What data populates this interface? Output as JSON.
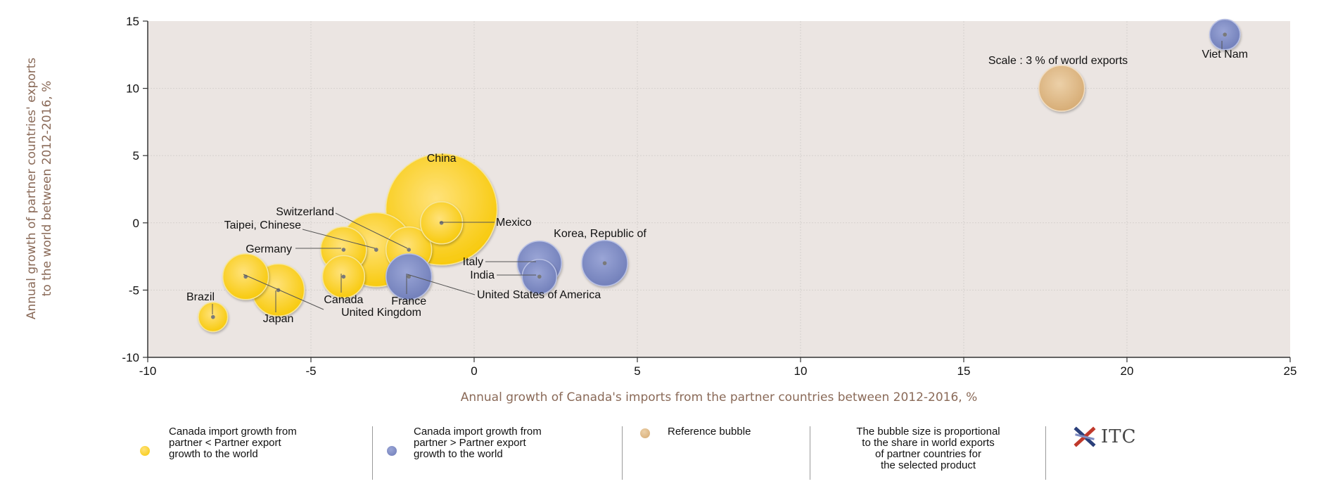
{
  "colors": {
    "plot_bg": "#ebe5e2",
    "yellow": "#fcd11f",
    "blue": "#7f8cc2",
    "reference": "#dcb685",
    "axis_title": "#8a6a58",
    "grid": "#d6d1ce"
  },
  "chart_data": {
    "type": "scatter",
    "title": "",
    "xlabel": "Annual growth of Canada's imports from the partner countries between 2012-2016, %",
    "ylabel_line1": "Annual growth of partner countries' exports",
    "ylabel_line2": "to the world between 2012-2016, %",
    "xlim": [
      -10,
      25
    ],
    "ylim": [
      -10,
      15
    ],
    "xticks": [
      -10,
      -5,
      0,
      5,
      10,
      15,
      20,
      25
    ],
    "yticks": [
      -10,
      -5,
      0,
      5,
      10,
      15
    ],
    "grid": true,
    "points": [
      {
        "name": "China",
        "x": -1,
        "y": 1,
        "size": 20,
        "color": "yellow"
      },
      {
        "name": "United States of America",
        "x": -3,
        "y": -2,
        "size": 8.5,
        "color": "yellow"
      },
      {
        "name": "Mexico",
        "x": -1,
        "y": 0,
        "size": 2.5,
        "color": "yellow"
      },
      {
        "name": "Germany",
        "x": -4,
        "y": -2,
        "size": 3,
        "color": "yellow"
      },
      {
        "name": "Switzerland",
        "x": -2,
        "y": -2,
        "size": 3,
        "color": "yellow"
      },
      {
        "name": "Japan",
        "x": -6,
        "y": -5,
        "size": 4,
        "color": "yellow"
      },
      {
        "name": "United Kingdom",
        "x": -7,
        "y": -4,
        "size": 3,
        "color": "yellow"
      },
      {
        "name": "Canada",
        "x": -4,
        "y": -4,
        "size": 2.5,
        "color": "yellow"
      },
      {
        "name": "Brazil",
        "x": -8,
        "y": -7,
        "size": 1.1,
        "color": "yellow"
      },
      {
        "name": "Taipei, Chinese",
        "x": -3,
        "y": -2,
        "size": 0.1,
        "color": "yellow"
      },
      {
        "name": "France",
        "x": -2,
        "y": -4,
        "size": 3,
        "color": "blue"
      },
      {
        "name": "Korea, Republic of",
        "x": 4,
        "y": -3,
        "size": 3,
        "color": "blue"
      },
      {
        "name": "Italy",
        "x": 2,
        "y": -3,
        "size": 2.8,
        "color": "blue"
      },
      {
        "name": "India",
        "x": 2,
        "y": -4,
        "size": 1.6,
        "color": "blue"
      },
      {
        "name": "Viet Nam",
        "x": 23,
        "y": 14,
        "size": 1.2,
        "color": "blue"
      }
    ],
    "reference": {
      "label": "Scale : 3 % of world exports",
      "x": 18,
      "y": 10,
      "size": 3
    }
  },
  "legend": {
    "items": [
      {
        "line1": "Canada import growth from",
        "line2": "partner < Partner export",
        "line3": "growth to the world"
      },
      {
        "line1": "Canada import growth from",
        "line2": "partner > Partner export",
        "line3": "growth to the world"
      },
      {
        "line1": "Reference bubble"
      },
      {
        "line1": "The bubble size is proportional",
        "line2": "to the share in world exports",
        "line3": "of partner countries for",
        "line4": "the selected product"
      }
    ],
    "logo_text": "ITC",
    "logo_icon": "itc-star-icon"
  }
}
